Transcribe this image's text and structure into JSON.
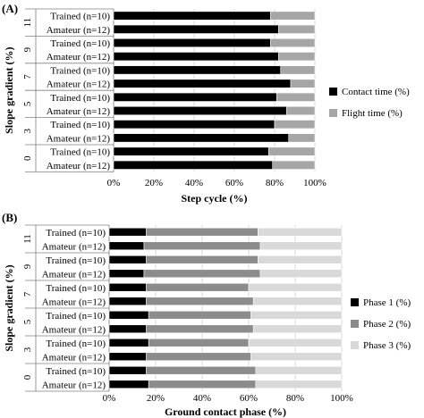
{
  "chart_data": [
    {
      "type": "bar",
      "stacked": true,
      "orientation": "horizontal",
      "panel_label": "(A)",
      "xlabel": "Step cycle (%)",
      "ylabel": "Slope gradient (%)",
      "xlim": [
        0,
        100
      ],
      "xticks": [
        "0%",
        "20%",
        "40%",
        "60%",
        "80%",
        "100%"
      ],
      "grid": true,
      "legend_position": "right",
      "groups": [
        "11",
        "9",
        "7",
        "5",
        "3",
        "0"
      ],
      "categories": [
        "Trained (n=10)",
        "Amateur (n=12)",
        "Trained (n=10)",
        "Amateur (n=12)",
        "Trained (n=10)",
        "Amateur (n=12)",
        "Trained (n=10)",
        "Amateur (n=12)",
        "Trained (n=10)",
        "Amateur (n=12)",
        "Trained (n=10)",
        "Amateur (n=12)"
      ],
      "series": [
        {
          "name": "Contact time (%)",
          "color": "#000000",
          "values": [
            78,
            82,
            78,
            82,
            83,
            88,
            81,
            86,
            80,
            87,
            77,
            79
          ]
        },
        {
          "name": "Flight time (%)",
          "color": "#a6a6a6",
          "values": [
            22,
            18,
            22,
            18,
            17,
            12,
            19,
            14,
            20,
            13,
            23,
            21
          ]
        }
      ]
    },
    {
      "type": "bar",
      "stacked": true,
      "orientation": "horizontal",
      "panel_label": "(B)",
      "xlabel": "Ground contact phase (%)",
      "ylabel": "Slope gradient (%)",
      "xlim": [
        0,
        100
      ],
      "xticks": [
        "0%",
        "20%",
        "40%",
        "60%",
        "80%",
        "100%"
      ],
      "grid": true,
      "legend_position": "right",
      "groups": [
        "11",
        "9",
        "7",
        "5",
        "3",
        "0"
      ],
      "categories": [
        "Trained (n=10)",
        "Amateur (n=12)",
        "Trained (n=10)",
        "Amateur (n=12)",
        "Trained (n=10)",
        "Amateur (n=12)",
        "Trained (n=10)",
        "Amateur (n=12)",
        "Trained (n=10)",
        "Amateur (n=12)",
        "Trained (n=10)",
        "Amateur (n=12)"
      ],
      "series": [
        {
          "name": "Phase 1 (%)",
          "color": "#000000",
          "values": [
            16,
            15,
            16,
            15,
            16,
            16,
            17,
            16,
            17,
            16,
            16,
            17
          ]
        },
        {
          "name": "Phase 2 (%)",
          "color": "#8c8c8c",
          "values": [
            48,
            50,
            48,
            50,
            44,
            46,
            44,
            46,
            43,
            45,
            47,
            46
          ]
        },
        {
          "name": "Phase 3 (%)",
          "color": "#d9d9d9",
          "values": [
            36,
            35,
            36,
            35,
            40,
            38,
            39,
            38,
            40,
            39,
            37,
            37
          ]
        }
      ]
    }
  ]
}
